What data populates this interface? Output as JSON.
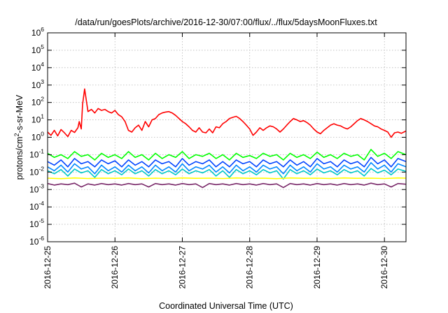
{
  "chart_data": {
    "type": "line",
    "title": "/data/run/goesPlots/archive/2016-12-30/07:00/flux/../flux/5daysMoonFluxes.txt",
    "xlabel": "Coordinated Universal Time (UTC)",
    "ylabel": {
      "prefix": "protons/cm",
      "superscript": "2",
      "suffix": "-s-sr-MeV"
    },
    "yscale": "log",
    "ylim_exp": [
      -6,
      6
    ],
    "y_tick_base": "10",
    "y_tick_exponents": [
      "-6",
      "-5",
      "-4",
      "-3",
      "-2",
      "-1",
      "0",
      "1",
      "2",
      "3",
      "4",
      "5",
      "6"
    ],
    "x_range_days": [
      0,
      5.32
    ],
    "x_tick_labels": [
      "2016-12-25",
      "2016-12-26",
      "2016-12-27",
      "2016-12-28",
      "2016-12-29",
      "2016-12-30"
    ],
    "grid": true,
    "legend": "none",
    "series": [
      {
        "color": "#ff0000",
        "x": [
          0.0,
          0.05,
          0.1,
          0.15,
          0.2,
          0.25,
          0.3,
          0.35,
          0.4,
          0.45,
          0.47,
          0.5,
          0.52,
          0.55,
          0.6,
          0.65,
          0.7,
          0.75,
          0.8,
          0.85,
          0.9,
          0.95,
          1.0,
          1.05,
          1.1,
          1.15,
          1.2,
          1.25,
          1.3,
          1.35,
          1.4,
          1.45,
          1.5,
          1.55,
          1.6,
          1.65,
          1.7,
          1.75,
          1.8,
          1.85,
          1.9,
          1.95,
          2.0,
          2.05,
          2.1,
          2.15,
          2.2,
          2.25,
          2.3,
          2.35,
          2.4,
          2.45,
          2.5,
          2.55,
          2.6,
          2.65,
          2.7,
          2.75,
          2.8,
          2.85,
          2.9,
          2.95,
          3.0,
          3.05,
          3.1,
          3.15,
          3.2,
          3.25,
          3.3,
          3.35,
          3.4,
          3.45,
          3.5,
          3.55,
          3.6,
          3.65,
          3.7,
          3.75,
          3.8,
          3.85,
          3.9,
          3.95,
          4.0,
          4.05,
          4.1,
          4.15,
          4.2,
          4.25,
          4.3,
          4.35,
          4.4,
          4.45,
          4.5,
          4.55,
          4.6,
          4.65,
          4.7,
          4.75,
          4.8,
          4.85,
          4.9,
          4.95,
          5.0,
          5.05,
          5.1,
          5.15,
          5.2,
          5.25,
          5.32
        ],
        "y": [
          2.0,
          1.3,
          2.5,
          1.2,
          2.8,
          1.8,
          1.1,
          2.5,
          1.9,
          3.5,
          8.0,
          3.0,
          80.0,
          600.0,
          30.0,
          40.0,
          25.0,
          45.0,
          35.0,
          40.0,
          30.0,
          25.0,
          35.0,
          20.0,
          15.0,
          8.0,
          2.5,
          2.0,
          3.5,
          5.0,
          2.5,
          8.0,
          4.0,
          10.0,
          12.0,
          20.0,
          25.0,
          28.0,
          30.0,
          25.0,
          18.0,
          12.0,
          8.0,
          6.0,
          4.0,
          2.5,
          2.0,
          3.5,
          2.0,
          1.8,
          3.0,
          1.8,
          4.0,
          3.5,
          6.0,
          8.0,
          12.0,
          14.0,
          16.0,
          12.0,
          8.0,
          5.0,
          3.0,
          1.3,
          2.0,
          3.5,
          2.5,
          3.5,
          4.5,
          4.0,
          3.0,
          2.0,
          3.0,
          5.0,
          8.0,
          12.0,
          10.0,
          8.0,
          9.0,
          7.0,
          5.0,
          3.0,
          2.0,
          1.6,
          2.5,
          3.5,
          5.0,
          6.0,
          5.0,
          4.5,
          3.5,
          3.0,
          4.0,
          6.0,
          9.0,
          12.0,
          10.0,
          8.0,
          6.0,
          4.5,
          4.0,
          3.0,
          2.5,
          2.0,
          1.0,
          1.8,
          2.0,
          1.7,
          2.3
        ]
      },
      {
        "color": "#00ff00",
        "x": [
          0.0,
          0.1,
          0.2,
          0.3,
          0.4,
          0.5,
          0.6,
          0.7,
          0.8,
          0.9,
          1.0,
          1.1,
          1.2,
          1.3,
          1.4,
          1.5,
          1.6,
          1.7,
          1.8,
          1.9,
          2.0,
          2.1,
          2.2,
          2.3,
          2.4,
          2.5,
          2.6,
          2.7,
          2.8,
          2.9,
          3.0,
          3.1,
          3.2,
          3.3,
          3.4,
          3.5,
          3.6,
          3.7,
          3.8,
          3.9,
          4.0,
          4.1,
          4.2,
          4.3,
          4.4,
          4.5,
          4.6,
          4.7,
          4.8,
          4.9,
          5.0,
          5.1,
          5.2,
          5.32
        ],
        "y": [
          0.12,
          0.07,
          0.1,
          0.06,
          0.15,
          0.08,
          0.1,
          0.05,
          0.12,
          0.07,
          0.1,
          0.06,
          0.15,
          0.07,
          0.1,
          0.05,
          0.12,
          0.06,
          0.1,
          0.07,
          0.15,
          0.06,
          0.1,
          0.08,
          0.12,
          0.06,
          0.1,
          0.05,
          0.12,
          0.07,
          0.09,
          0.06,
          0.12,
          0.08,
          0.1,
          0.05,
          0.12,
          0.07,
          0.1,
          0.06,
          0.14,
          0.07,
          0.1,
          0.06,
          0.12,
          0.08,
          0.1,
          0.05,
          0.2,
          0.08,
          0.12,
          0.06,
          0.15,
          0.1
        ]
      },
      {
        "color": "#0044ff",
        "x": [
          0.0,
          0.1,
          0.2,
          0.3,
          0.4,
          0.5,
          0.6,
          0.7,
          0.8,
          0.9,
          1.0,
          1.1,
          1.2,
          1.3,
          1.4,
          1.5,
          1.6,
          1.7,
          1.8,
          1.9,
          2.0,
          2.1,
          2.2,
          2.3,
          2.4,
          2.5,
          2.6,
          2.7,
          2.8,
          2.9,
          3.0,
          3.1,
          3.2,
          3.3,
          3.4,
          3.5,
          3.6,
          3.7,
          3.8,
          3.9,
          4.0,
          4.1,
          4.2,
          4.3,
          4.4,
          4.5,
          4.6,
          4.7,
          4.8,
          4.9,
          5.0,
          5.1,
          5.2,
          5.32
        ],
        "y": [
          0.04,
          0.025,
          0.05,
          0.02,
          0.06,
          0.03,
          0.04,
          0.02,
          0.05,
          0.03,
          0.045,
          0.02,
          0.05,
          0.025,
          0.04,
          0.02,
          0.05,
          0.03,
          0.04,
          0.02,
          0.06,
          0.025,
          0.04,
          0.03,
          0.05,
          0.02,
          0.04,
          0.02,
          0.05,
          0.03,
          0.04,
          0.02,
          0.05,
          0.03,
          0.04,
          0.02,
          0.05,
          0.025,
          0.04,
          0.02,
          0.06,
          0.03,
          0.04,
          0.02,
          0.05,
          0.03,
          0.04,
          0.02,
          0.07,
          0.03,
          0.05,
          0.02,
          0.06,
          0.04
        ]
      },
      {
        "color": "#0088ff",
        "x": [
          0.0,
          0.1,
          0.2,
          0.3,
          0.4,
          0.5,
          0.6,
          0.7,
          0.8,
          0.9,
          1.0,
          1.1,
          1.2,
          1.3,
          1.4,
          1.5,
          1.6,
          1.7,
          1.8,
          1.9,
          2.0,
          2.1,
          2.2,
          2.3,
          2.4,
          2.5,
          2.6,
          2.7,
          2.8,
          2.9,
          3.0,
          3.1,
          3.2,
          3.3,
          3.4,
          3.5,
          3.6,
          3.7,
          3.8,
          3.9,
          4.0,
          4.1,
          4.2,
          4.3,
          4.4,
          4.5,
          4.6,
          4.7,
          4.8,
          4.9,
          5.0,
          5.1,
          5.2,
          5.32
        ],
        "y": [
          0.02,
          0.012,
          0.025,
          0.01,
          0.03,
          0.015,
          0.02,
          0.008,
          0.025,
          0.012,
          0.02,
          0.01,
          0.025,
          0.012,
          0.02,
          0.009,
          0.025,
          0.012,
          0.02,
          0.01,
          0.03,
          0.012,
          0.02,
          0.015,
          0.025,
          0.01,
          0.02,
          0.009,
          0.025,
          0.012,
          0.02,
          0.01,
          0.025,
          0.015,
          0.02,
          0.008,
          0.025,
          0.012,
          0.02,
          0.01,
          0.03,
          0.015,
          0.02,
          0.01,
          0.025,
          0.015,
          0.02,
          0.01,
          0.035,
          0.015,
          0.025,
          0.01,
          0.03,
          0.02
        ]
      },
      {
        "color": "#00c8c8",
        "x": [
          0.0,
          0.1,
          0.2,
          0.3,
          0.4,
          0.5,
          0.6,
          0.7,
          0.8,
          0.9,
          1.0,
          1.1,
          1.2,
          1.3,
          1.4,
          1.5,
          1.6,
          1.7,
          1.8,
          1.9,
          2.0,
          2.1,
          2.2,
          2.3,
          2.4,
          2.5,
          2.6,
          2.7,
          2.8,
          2.9,
          3.0,
          3.1,
          3.2,
          3.3,
          3.4,
          3.5,
          3.6,
          3.7,
          3.8,
          3.9,
          4.0,
          4.1,
          4.2,
          4.3,
          4.4,
          4.5,
          4.6,
          4.7,
          4.8,
          4.9,
          5.0,
          5.1,
          5.2,
          5.32
        ],
        "y": [
          0.012,
          0.008,
          0.014,
          0.006,
          0.015,
          0.009,
          0.012,
          0.005,
          0.014,
          0.008,
          0.012,
          0.007,
          0.015,
          0.008,
          0.012,
          0.006,
          0.014,
          0.008,
          0.012,
          0.007,
          0.015,
          0.008,
          0.012,
          0.009,
          0.014,
          0.006,
          0.012,
          0.005,
          0.014,
          0.008,
          0.012,
          0.007,
          0.014,
          0.009,
          0.012,
          0.004,
          0.014,
          0.008,
          0.012,
          0.007,
          0.015,
          0.009,
          0.012,
          0.007,
          0.014,
          0.009,
          0.012,
          0.006,
          0.016,
          0.009,
          0.013,
          0.007,
          0.015,
          0.011
        ]
      },
      {
        "color": "#ffff00",
        "x": [
          0.0,
          0.2,
          0.4,
          0.6,
          0.8,
          1.0,
          1.2,
          1.4,
          1.6,
          1.8,
          2.0,
          2.2,
          2.4,
          2.6,
          2.8,
          3.0,
          3.2,
          3.4,
          3.6,
          3.8,
          4.0,
          4.2,
          4.4,
          4.6,
          4.8,
          5.0,
          5.2,
          5.32
        ],
        "y": [
          0.0045,
          0.0042,
          0.0046,
          0.0043,
          0.0045,
          0.0044,
          0.0046,
          0.0042,
          0.0045,
          0.0043,
          0.0046,
          0.0044,
          0.0045,
          0.0043,
          0.0046,
          0.0044,
          0.0045,
          0.0042,
          0.0046,
          0.0044,
          0.0045,
          0.0043,
          0.0046,
          0.0044,
          0.0045,
          0.0043,
          0.0046,
          0.0045
        ]
      },
      {
        "color": "#7a2a6a",
        "x": [
          0.0,
          0.1,
          0.2,
          0.3,
          0.4,
          0.5,
          0.6,
          0.7,
          0.8,
          0.9,
          1.0,
          1.1,
          1.2,
          1.3,
          1.4,
          1.5,
          1.6,
          1.7,
          1.8,
          1.9,
          2.0,
          2.1,
          2.2,
          2.3,
          2.4,
          2.5,
          2.6,
          2.7,
          2.8,
          2.9,
          3.0,
          3.1,
          3.2,
          3.3,
          3.4,
          3.5,
          3.6,
          3.7,
          3.8,
          3.9,
          4.0,
          4.1,
          4.2,
          4.3,
          4.4,
          4.5,
          4.6,
          4.7,
          4.8,
          4.9,
          5.0,
          5.1,
          5.2,
          5.32
        ],
        "y": [
          0.0022,
          0.0018,
          0.0021,
          0.0019,
          0.0023,
          0.0014,
          0.0021,
          0.0018,
          0.0022,
          0.0019,
          0.0021,
          0.0018,
          0.0022,
          0.0019,
          0.0021,
          0.0014,
          0.0022,
          0.0019,
          0.0021,
          0.0018,
          0.0022,
          0.0019,
          0.0021,
          0.0013,
          0.0022,
          0.0019,
          0.0021,
          0.0018,
          0.0022,
          0.0019,
          0.0021,
          0.0018,
          0.0022,
          0.0019,
          0.0021,
          0.0013,
          0.0022,
          0.0019,
          0.0021,
          0.0018,
          0.0022,
          0.0019,
          0.0021,
          0.0018,
          0.0022,
          0.0019,
          0.0021,
          0.0018,
          0.0023,
          0.0019,
          0.0021,
          0.0014,
          0.0022,
          0.002
        ]
      }
    ]
  }
}
